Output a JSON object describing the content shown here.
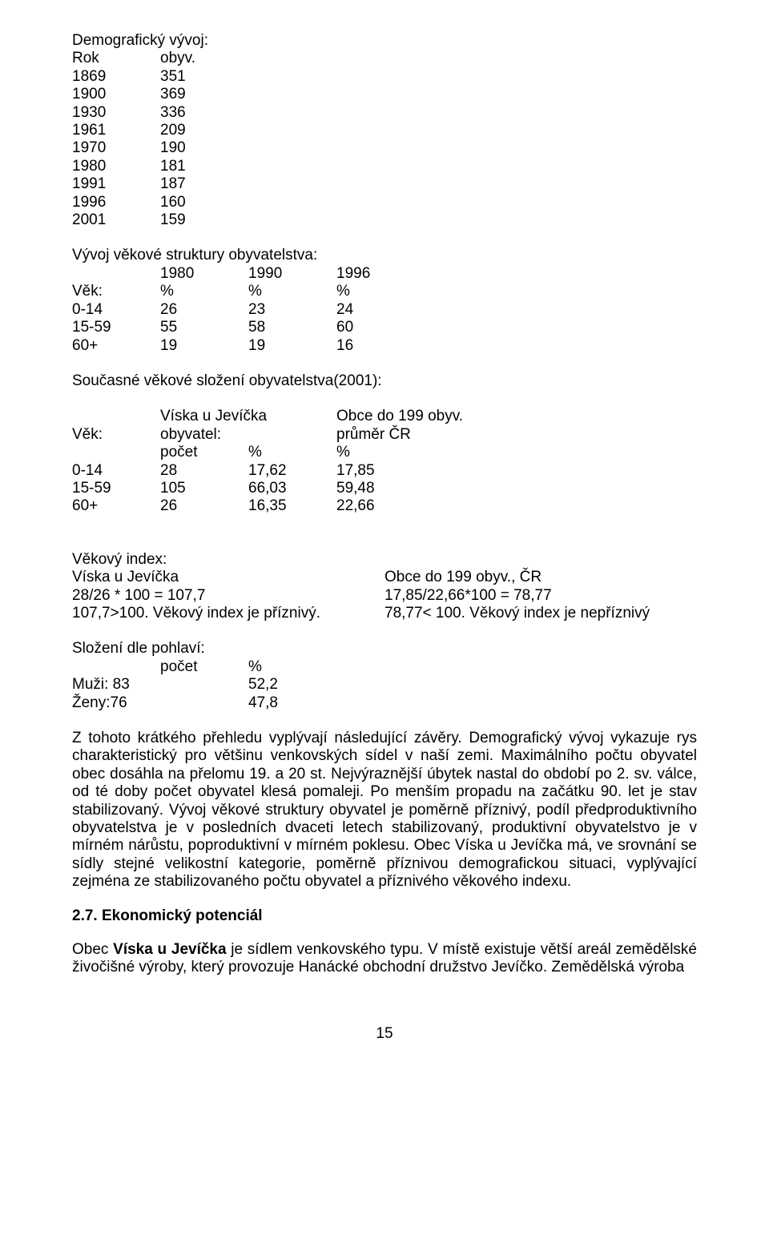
{
  "demog_title": "Demografický vývoj:",
  "demog_head": {
    "c1": "Rok",
    "c2": "obyv."
  },
  "demog_rows": [
    {
      "c1": "1869",
      "c2": "351"
    },
    {
      "c1": "1900",
      "c2": "369"
    },
    {
      "c1": "1930",
      "c2": "336"
    },
    {
      "c1": "1961",
      "c2": "209"
    },
    {
      "c1": "1970",
      "c2": "190"
    },
    {
      "c1": "1980",
      "c2": "181"
    },
    {
      "c1": "1991",
      "c2": "187"
    },
    {
      "c1": "1996",
      "c2": "160"
    },
    {
      "c1": "2001",
      "c2": "159"
    }
  ],
  "vek_title": "Vývoj věkové struktury obyvatelstva:",
  "vek_head": {
    "c1": "",
    "c2": "1980",
    "c3": "1990",
    "c4": "1996"
  },
  "vek_unit": {
    "c1": "Věk:",
    "c2": "%",
    "c3": "%",
    "c4": "%"
  },
  "vek_rows": [
    {
      "c1": "0-14",
      "c2": "26",
      "c3": "23",
      "c4": "24"
    },
    {
      "c1": "15-59",
      "c2": "55",
      "c3": "58",
      "c4": "60"
    },
    {
      "c1": "60+",
      "c2": "19",
      "c3": "19",
      "c4": "16"
    }
  ],
  "curr_title": "Současné věkové složení obyvatelstva(2001):",
  "curr_head1": {
    "c1": "",
    "c2": "Víska u Jevíčka",
    "c4": "Obce do 199 obyv."
  },
  "curr_head2": {
    "c1": "Věk:",
    "c2": "obyvatel:",
    "c4": "průměr ČR"
  },
  "curr_head3": {
    "c1": "",
    "c2": "počet",
    "c3": "%",
    "c4": "%"
  },
  "curr_rows": [
    {
      "c1": "0-14",
      "c2": "28",
      "c3": "17,62",
      "c4": "17,85"
    },
    {
      "c1": "15-59",
      "c2": "105",
      "c3": "66,03",
      "c4": "59,48"
    },
    {
      "c1": "60+",
      "c2": "26",
      "c3": "16,35",
      "c4": "22,66"
    }
  ],
  "vekidx_title": "Věkový index:",
  "vekidx_rows": [
    {
      "l": "Víska u Jevíčka",
      "r": "Obce do 199 obyv., ČR"
    },
    {
      "l": "28/26 * 100 = 107,7",
      "r": "17,85/22,66*100 = 78,77"
    },
    {
      "l": "107,7>100. Věkový index je příznivý.",
      "r": "78,77< 100. Věkový index  je nepříznivý"
    }
  ],
  "sex_title": "Složení dle pohlaví:",
  "sex_head": {
    "c1": "",
    "c2": "počet",
    "c3": "%"
  },
  "sex_rows": [
    {
      "c1": "Muži: 83",
      "c3": "52,2"
    },
    {
      "c1": "Ženy:76",
      "c3": "47,8"
    }
  ],
  "para1": "Z tohoto krátkého přehledu vyplývají následující závěry. Demografický vývoj vykazuje rys charakteristický pro většinu venkovských sídel v naší zemi. Maximálního počtu obyvatel obec dosáhla na přelomu 19. a 20 st. Nejvýraznější  úbytek nastal do období po 2. sv. válce, od té doby počet obyvatel klesá pomaleji. Po menším propadu na začátku 90. let je stav stabilizovaný. Vývoj věkové struktury obyvatel je poměrně příznivý, podíl předproduktivního obyvatelstva je v posledních dvaceti letech stabilizovaný, produktivní obyvatelstvo je v mírném nárůstu, poproduktivní v mírném poklesu. Obec Víska u Jevíčka má, ve srovnání se sídly stejné velikostní kategorie, poměrně příznivou demografickou situaci, vyplývající zejména ze stabilizovaného počtu obyvatel a příznivého věkového indexu.",
  "h27": "2.7. Ekonomický potenciál",
  "para2": "Obec Víska u Jevíčka je sídlem venkovského typu. V místě existuje větší areál zemědělské živočišné výroby, který provozuje Hanácké obchodní družstvo Jevíčko. Zemědělská výroba",
  "para2_bold": "Víska u Jevíčka",
  "para2_pre": "Obec ",
  "para2_post": " je sídlem venkovského typu. V místě existuje větší areál zemědělské živočišné výroby, který provozuje Hanácké obchodní družstvo Jevíčko. Zemědělská výroba",
  "page_number": "15"
}
